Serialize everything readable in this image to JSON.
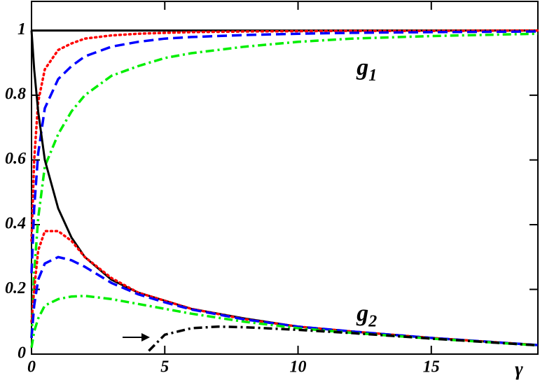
{
  "chart_data": {
    "type": "line",
    "x_label": "γ",
    "x": [
      0,
      0.1,
      0.25,
      0.5,
      1,
      1.5,
      2,
      3,
      4,
      5,
      6,
      8,
      10,
      12,
      15,
      19
    ],
    "series": [
      {
        "color": "#000000",
        "style": "solid",
        "values": [
          1,
          1,
          1,
          1,
          1,
          1,
          1,
          1,
          1,
          1,
          1,
          1,
          1,
          1,
          1,
          1
        ]
      },
      {
        "color": "#ff0000",
        "style": "dotted",
        "values": [
          0.35,
          0.6,
          0.78,
          0.88,
          0.94,
          0.96,
          0.975,
          0.985,
          0.99,
          0.993,
          0.995,
          0.997,
          0.998,
          0.999,
          0.999,
          1.0
        ]
      },
      {
        "color": "#0000ff",
        "style": "dashed",
        "values": [
          0.25,
          0.45,
          0.62,
          0.76,
          0.85,
          0.89,
          0.92,
          0.95,
          0.965,
          0.975,
          0.98,
          0.986,
          0.99,
          0.993,
          0.995,
          0.997
        ]
      },
      {
        "color": "#00ee00",
        "style": "dashdot",
        "values": [
          0.05,
          0.25,
          0.42,
          0.58,
          0.68,
          0.75,
          0.8,
          0.86,
          0.89,
          0.915,
          0.93,
          0.95,
          0.965,
          0.975,
          0.983,
          0.99
        ]
      },
      {
        "color": "#000000",
        "style": "solid",
        "values": [
          1.0,
          0.88,
          0.75,
          0.6,
          0.45,
          0.36,
          0.3,
          0.23,
          0.19,
          0.165,
          0.14,
          0.11,
          0.085,
          0.07,
          0.05,
          0.028
        ]
      },
      {
        "color": "#ff0000",
        "style": "dotted",
        "values": [
          0.1,
          0.2,
          0.32,
          0.38,
          0.38,
          0.35,
          0.3,
          0.235,
          0.19,
          0.165,
          0.14,
          0.108,
          0.085,
          0.07,
          0.05,
          0.028
        ]
      },
      {
        "color": "#0000ff",
        "style": "dashed",
        "values": [
          0.05,
          0.15,
          0.23,
          0.28,
          0.3,
          0.29,
          0.27,
          0.22,
          0.185,
          0.16,
          0.138,
          0.107,
          0.085,
          0.07,
          0.05,
          0.028
        ]
      },
      {
        "color": "#00ee00",
        "style": "dashdot",
        "values": [
          0.02,
          0.07,
          0.11,
          0.15,
          0.17,
          0.178,
          0.18,
          0.17,
          0.155,
          0.14,
          0.125,
          0.1,
          0.08,
          0.066,
          0.048,
          0.027
        ]
      },
      {
        "color": "#000000",
        "style": "dashdot",
        "x": [
          4.4,
          5,
          6,
          7,
          8,
          10,
          12,
          15,
          19
        ],
        "values": [
          0.01,
          0.06,
          0.08,
          0.085,
          0.083,
          0.075,
          0.065,
          0.048,
          0.027
        ]
      }
    ],
    "annotations": [
      {
        "text": "g",
        "subscript": "1"
      },
      {
        "text": "g",
        "subscript": "2"
      }
    ],
    "xlim": [
      0,
      19
    ],
    "ylim": [
      0,
      1.09
    ],
    "xticks": [
      0,
      5,
      10,
      15
    ],
    "yticks": [
      0,
      0.2,
      0.4,
      0.6,
      0.8,
      1
    ]
  }
}
